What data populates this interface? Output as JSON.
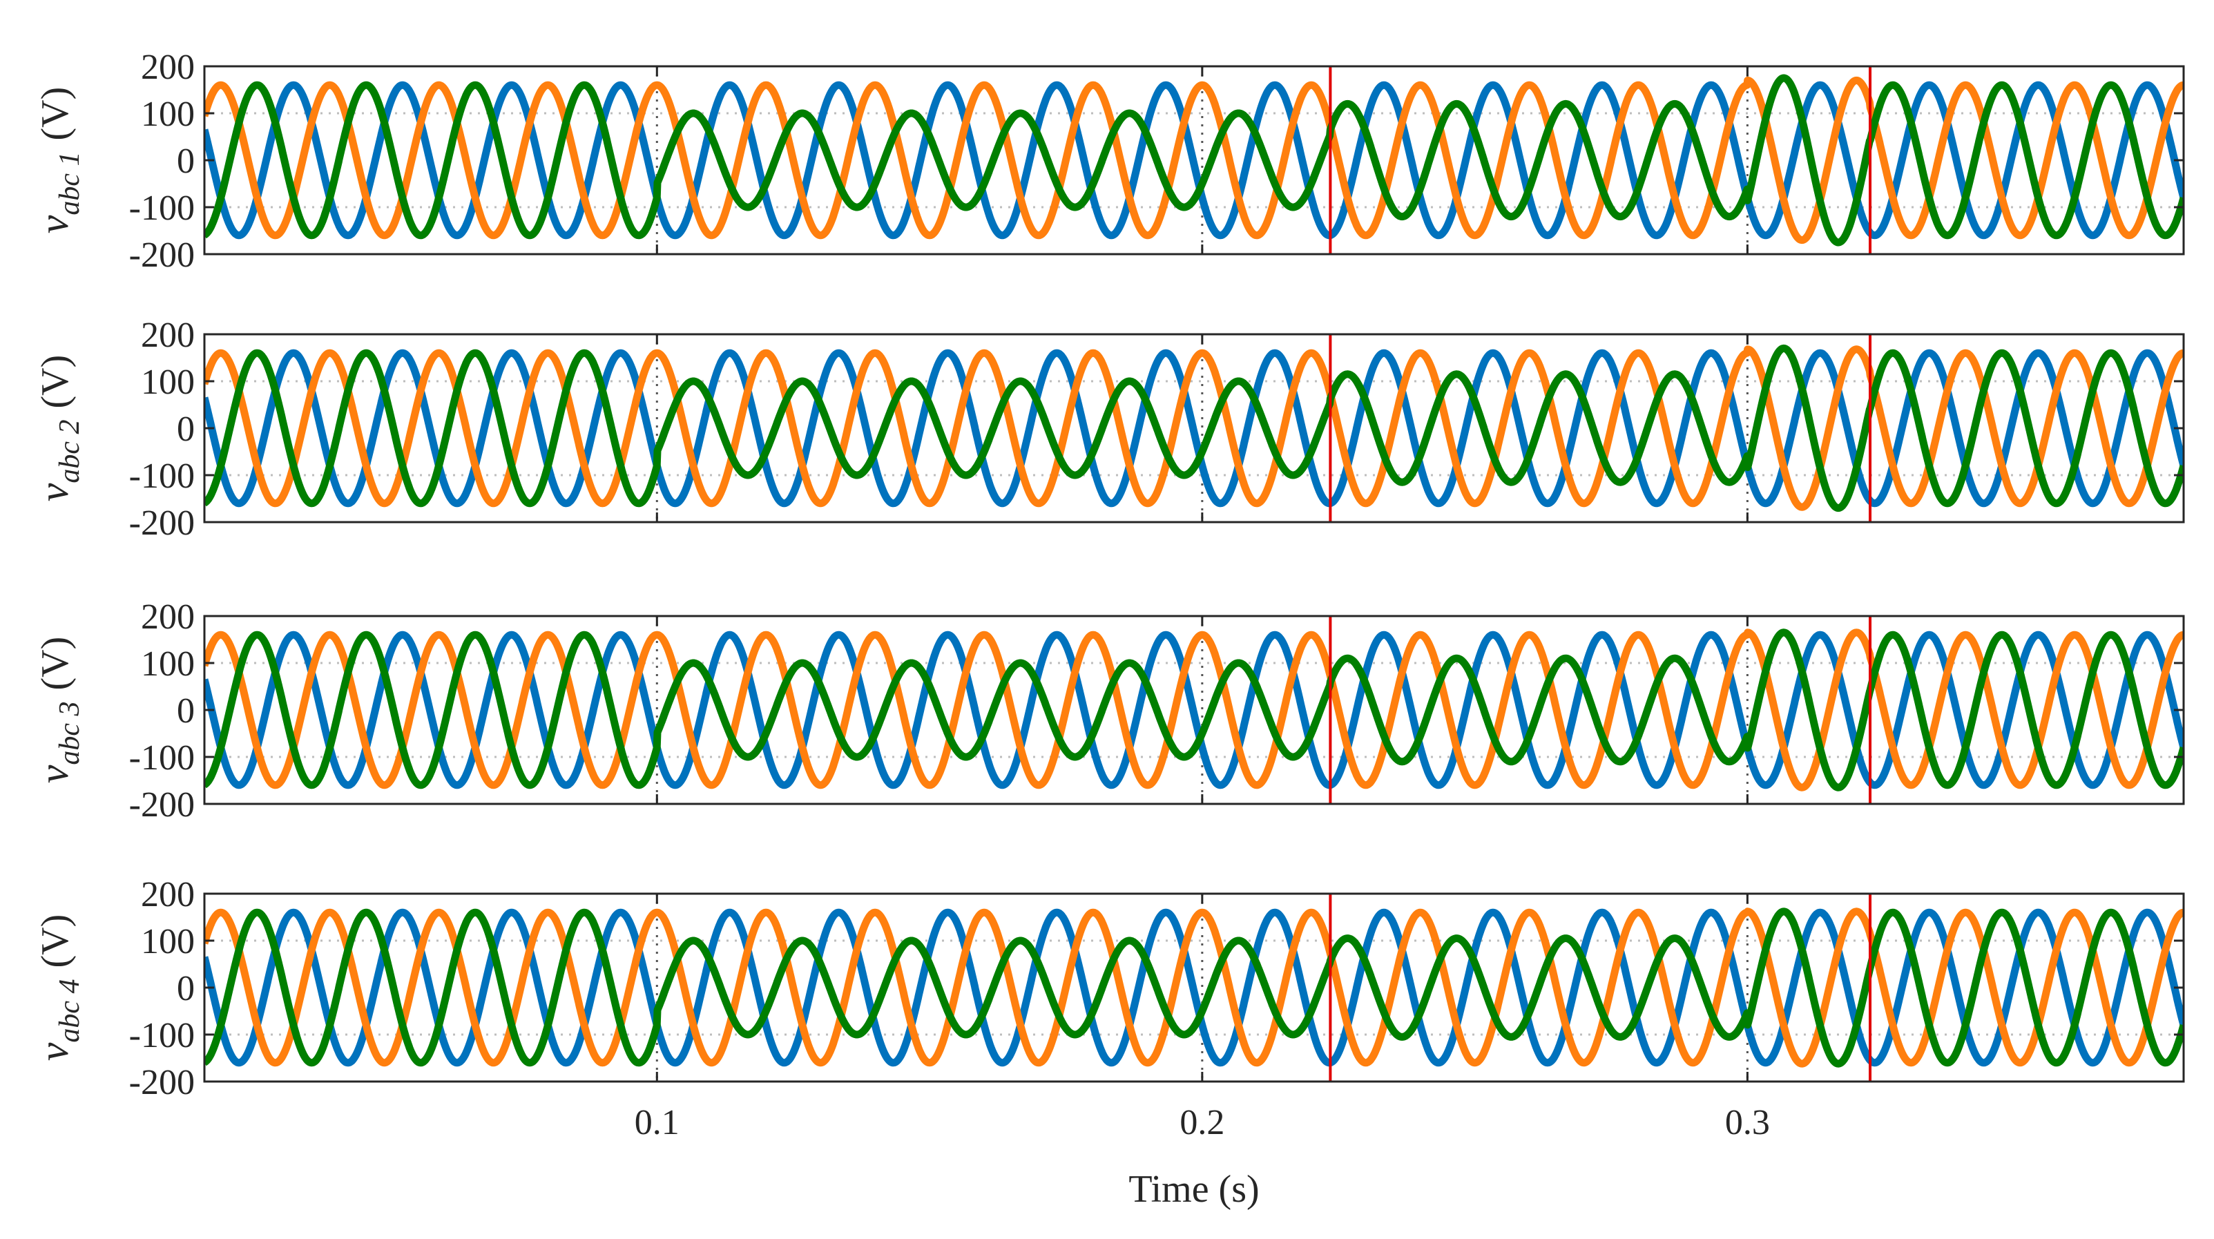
{
  "chart_data": {
    "type": "line",
    "description_note": "",
    "shared_x": {
      "label": "Time (s)",
      "range": [
        0.017,
        0.38
      ],
      "ticks": [
        0.1,
        0.2,
        0.3
      ],
      "tick_labels": [
        "0.1",
        "0.2",
        "0.3"
      ]
    },
    "colors": {
      "phase_a": "#0072BD",
      "phase_b": "#FF7F0E",
      "phase_c": "#007F00",
      "event_line": "#E00000",
      "grid": "#bdbdbd"
    },
    "event_times": [
      0.2235,
      0.3225
    ],
    "vertical_dotted_at": [
      0.1,
      0.2,
      0.3
    ],
    "panels": [
      {
        "ylabel_main": "v",
        "ylabel_sub": "abc 1",
        "ylabel_unit": "(V)",
        "ylim": [
          -200,
          200
        ],
        "yticks": [
          200,
          100,
          0,
          -100,
          -200
        ],
        "ytick_labels": [
          "200",
          "100",
          "0",
          "-100",
          "-200"
        ],
        "dotted_grid_y": [
          100,
          -100
        ],
        "series": [
          {
            "values": {
              "frequency_hz": 50,
              "phase_deg": 210,
              "amplitude_segments": [
                [
                  0.017,
                  0.38,
                  160
                ]
              ]
            }
          },
          {
            "values": {
              "frequency_hz": 50,
              "phase_deg": 90,
              "amplitude_segments": [
                [
                  0.017,
                  0.3,
                  160
                ],
                [
                  0.3,
                  0.3225,
                  170
                ],
                [
                  0.3225,
                  0.38,
                  160
                ]
              ]
            }
          },
          {
            "values": {
              "frequency_hz": 50,
              "phase_deg": 330,
              "amplitude_segments": [
                [
                  0.017,
                  0.1,
                  160
                ],
                [
                  0.1,
                  0.2235,
                  100
                ],
                [
                  0.2235,
                  0.3,
                  120
                ],
                [
                  0.3,
                  0.3225,
                  175
                ],
                [
                  0.3225,
                  0.38,
                  160
                ]
              ]
            }
          }
        ]
      },
      {
        "ylabel_main": "v",
        "ylabel_sub": "abc 2",
        "ylabel_unit": "(V)",
        "ylim": [
          -200,
          200
        ],
        "yticks": [
          200,
          100,
          0,
          -100,
          -200
        ],
        "ytick_labels": [
          "200",
          "100",
          "0",
          "-100",
          "-200"
        ],
        "dotted_grid_y": [
          100,
          -100
        ],
        "series": [
          {
            "values": {
              "frequency_hz": 50,
              "phase_deg": 210,
              "amplitude_segments": [
                [
                  0.017,
                  0.38,
                  160
                ]
              ]
            }
          },
          {
            "values": {
              "frequency_hz": 50,
              "phase_deg": 90,
              "amplitude_segments": [
                [
                  0.017,
                  0.3,
                  160
                ],
                [
                  0.3,
                  0.3225,
                  168
                ],
                [
                  0.3225,
                  0.38,
                  160
                ]
              ]
            }
          },
          {
            "values": {
              "frequency_hz": 50,
              "phase_deg": 330,
              "amplitude_segments": [
                [
                  0.017,
                  0.1,
                  160
                ],
                [
                  0.1,
                  0.2235,
                  100
                ],
                [
                  0.2235,
                  0.3,
                  115
                ],
                [
                  0.3,
                  0.3225,
                  170
                ],
                [
                  0.3225,
                  0.38,
                  160
                ]
              ]
            }
          }
        ]
      },
      {
        "ylabel_main": "v",
        "ylabel_sub": "abc 3",
        "ylabel_unit": "(V)",
        "ylim": [
          -200,
          200
        ],
        "yticks": [
          200,
          100,
          0,
          -100,
          -200
        ],
        "ytick_labels": [
          "200",
          "100",
          "0",
          "-100",
          "-200"
        ],
        "dotted_grid_y": [
          100,
          -100
        ],
        "series": [
          {
            "values": {
              "frequency_hz": 50,
              "phase_deg": 210,
              "amplitude_segments": [
                [
                  0.017,
                  0.38,
                  160
                ]
              ]
            }
          },
          {
            "values": {
              "frequency_hz": 50,
              "phase_deg": 90,
              "amplitude_segments": [
                [
                  0.017,
                  0.3,
                  160
                ],
                [
                  0.3,
                  0.3225,
                  165
                ],
                [
                  0.3225,
                  0.38,
                  160
                ]
              ]
            }
          },
          {
            "values": {
              "frequency_hz": 50,
              "phase_deg": 330,
              "amplitude_segments": [
                [
                  0.017,
                  0.1,
                  160
                ],
                [
                  0.1,
                  0.2235,
                  100
                ],
                [
                  0.2235,
                  0.3,
                  110
                ],
                [
                  0.3,
                  0.3225,
                  165
                ],
                [
                  0.3225,
                  0.38,
                  160
                ]
              ]
            }
          }
        ]
      },
      {
        "ylabel_main": "v",
        "ylabel_sub": "abc 4",
        "ylabel_unit": "(V)",
        "ylim": [
          -200,
          200
        ],
        "yticks": [
          200,
          100,
          0,
          -100,
          -200
        ],
        "ytick_labels": [
          "200",
          "100",
          "0",
          "-100",
          "-200"
        ],
        "dotted_grid_y": [
          100,
          -100
        ],
        "series": [
          {
            "values": {
              "frequency_hz": 50,
              "phase_deg": 210,
              "amplitude_segments": [
                [
                  0.017,
                  0.38,
                  160
                ]
              ]
            }
          },
          {
            "values": {
              "frequency_hz": 50,
              "phase_deg": 90,
              "amplitude_segments": [
                [
                  0.017,
                  0.3,
                  160
                ],
                [
                  0.3,
                  0.3225,
                  162
                ],
                [
                  0.3225,
                  0.38,
                  160
                ]
              ]
            }
          },
          {
            "values": {
              "frequency_hz": 50,
              "phase_deg": 330,
              "amplitude_segments": [
                [
                  0.017,
                  0.1,
                  160
                ],
                [
                  0.1,
                  0.2235,
                  100
                ],
                [
                  0.2235,
                  0.3,
                  105
                ],
                [
                  0.3,
                  0.3225,
                  162
                ],
                [
                  0.3225,
                  0.38,
                  160
                ]
              ]
            }
          }
        ]
      }
    ]
  }
}
